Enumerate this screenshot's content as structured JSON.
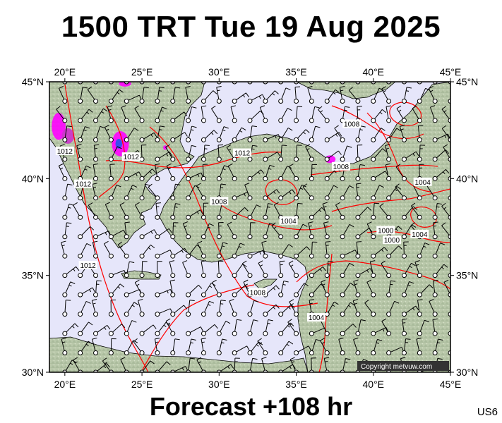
{
  "title": "1500 TRT Tue 19 Aug 2025",
  "footer": "Forecast +108 hr",
  "model_code": "US6",
  "copyright": "Copyright metvuw.com",
  "colors": {
    "sea": "#e6e6fa",
    "land": "#b7c6a8",
    "isobar": "#ff0000",
    "coast": "#000000",
    "rain_light": "#ff00ff",
    "rain_mid": "#cc33cc",
    "rain_heavy": "#2255ee"
  },
  "map": {
    "lon_range": [
      19,
      45
    ],
    "lat_range": [
      30,
      45
    ],
    "lon_ticks": [
      {
        "value": 20,
        "label": "20°E"
      },
      {
        "value": 25,
        "label": "25°E"
      },
      {
        "value": 30,
        "label": "30°E"
      },
      {
        "value": 35,
        "label": "35°E"
      },
      {
        "value": 40,
        "label": "40°E"
      },
      {
        "value": 45,
        "label": "45°E"
      }
    ],
    "lat_ticks": [
      {
        "value": 45,
        "label": "45°N"
      },
      {
        "value": 40,
        "label": "40°N"
      },
      {
        "value": 35,
        "label": "35°N"
      },
      {
        "value": 30,
        "label": "30°N"
      }
    ],
    "isobar_labels": [
      {
        "text": "1012",
        "lon": 20.0,
        "lat": 41.4
      },
      {
        "text": "1012",
        "lon": 24.3,
        "lat": 41.1
      },
      {
        "text": "1012",
        "lon": 21.2,
        "lat": 39.7
      },
      {
        "text": "1012",
        "lon": 31.5,
        "lat": 41.3
      },
      {
        "text": "1012",
        "lon": 21.5,
        "lat": 35.5
      },
      {
        "text": "1008",
        "lon": 30.0,
        "lat": 38.8
      },
      {
        "text": "1008",
        "lon": 38.6,
        "lat": 42.8
      },
      {
        "text": "1008",
        "lon": 37.9,
        "lat": 40.6
      },
      {
        "text": "1008",
        "lon": 32.5,
        "lat": 34.1
      },
      {
        "text": "1004",
        "lon": 34.5,
        "lat": 37.8
      },
      {
        "text": "1004",
        "lon": 43.2,
        "lat": 39.8
      },
      {
        "text": "1004",
        "lon": 43.0,
        "lat": 37.1
      },
      {
        "text": "1004",
        "lon": 36.3,
        "lat": 32.8
      },
      {
        "text": "1000",
        "lon": 40.8,
        "lat": 37.3
      },
      {
        "text": "1000",
        "lon": 41.2,
        "lat": 36.8
      }
    ],
    "rain_areas": [
      {
        "lon": 19.6,
        "lat": 42.7,
        "rx": 0.45,
        "ry": 0.7,
        "level": "light"
      },
      {
        "lon": 20.2,
        "lat": 42.2,
        "rx": 0.4,
        "ry": 0.4,
        "level": "mid"
      },
      {
        "lon": 23.6,
        "lat": 41.8,
        "rx": 0.55,
        "ry": 0.65,
        "level": "light"
      },
      {
        "lon": 23.5,
        "lat": 41.8,
        "rx": 0.22,
        "ry": 0.25,
        "level": "heavy"
      },
      {
        "lon": 23.9,
        "lat": 44.9,
        "rx": 0.4,
        "ry": 0.15,
        "level": "light"
      },
      {
        "lon": 26.5,
        "lat": 41.6,
        "rx": 0.12,
        "ry": 0.12,
        "level": "light"
      },
      {
        "lon": 37.2,
        "lat": 41.0,
        "rx": 0.35,
        "ry": 0.2,
        "level": "light"
      }
    ]
  }
}
